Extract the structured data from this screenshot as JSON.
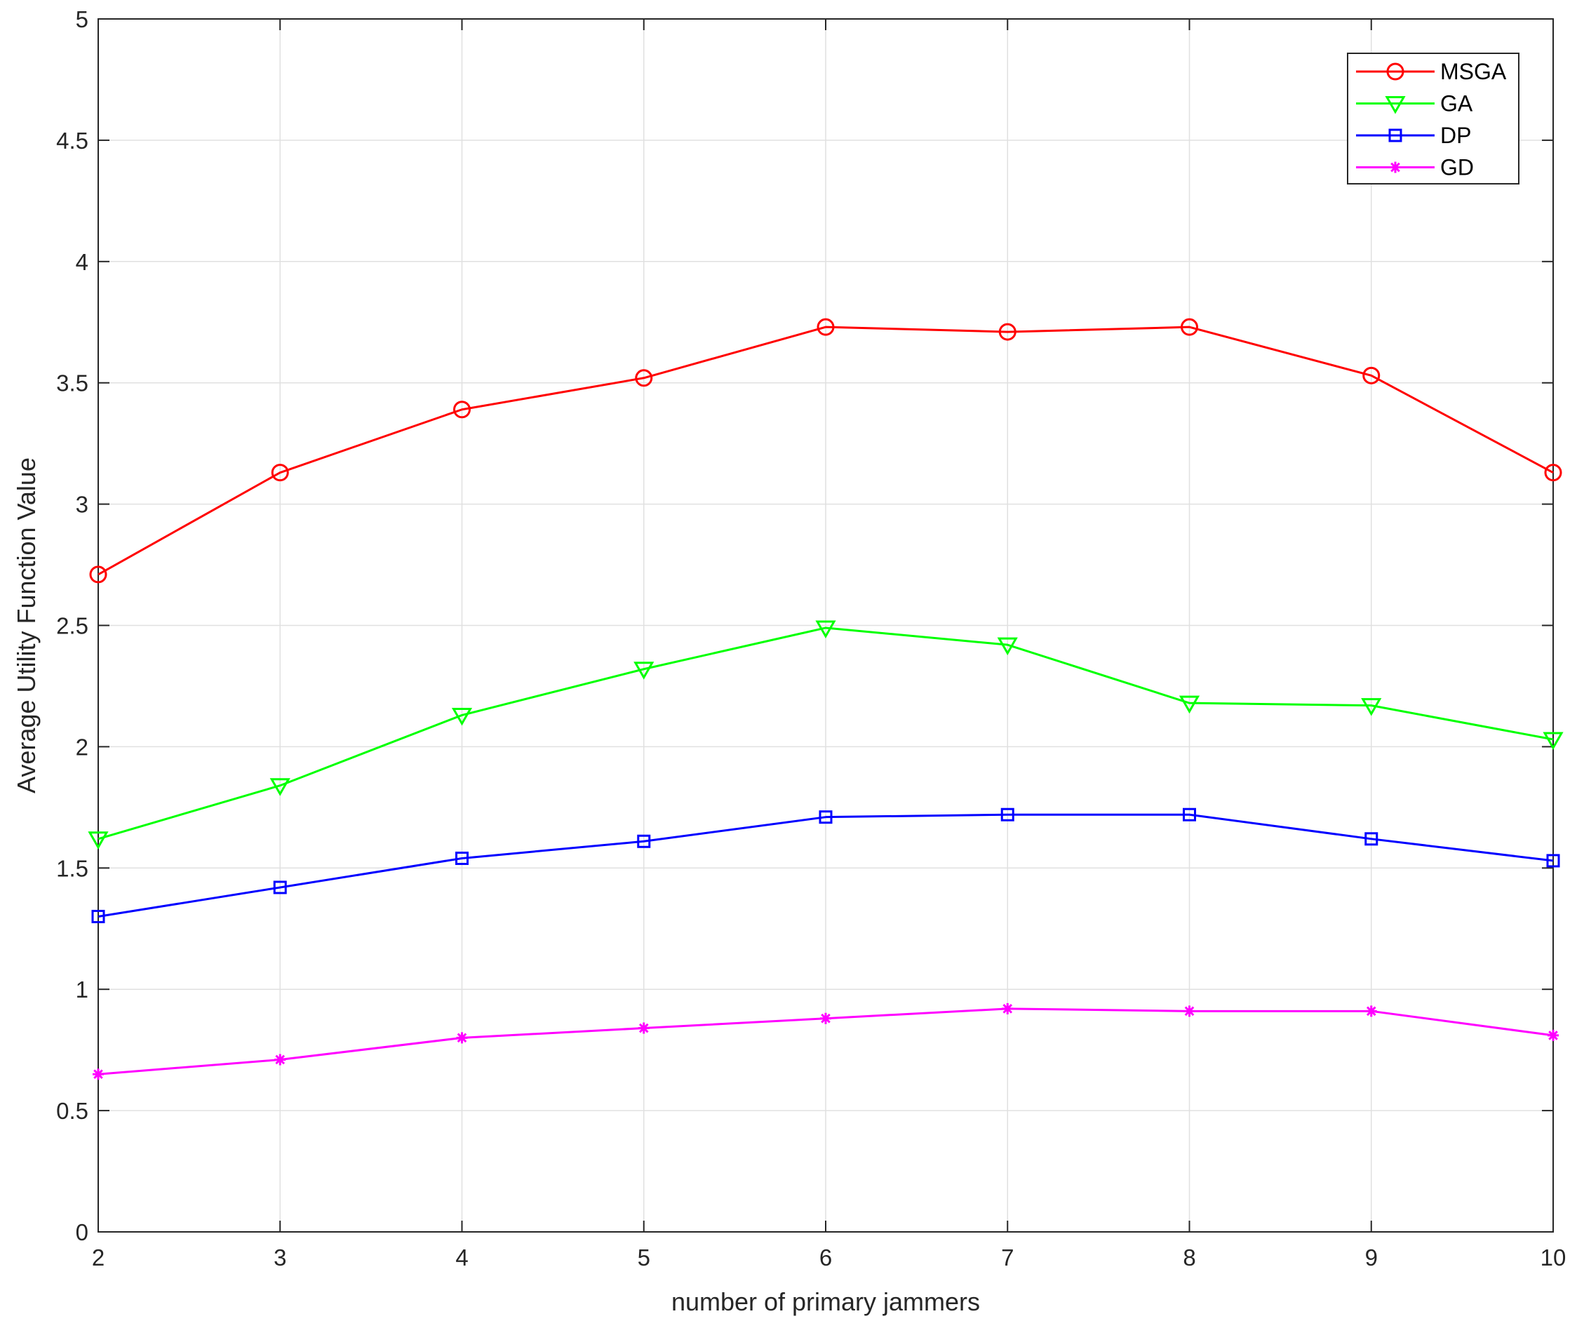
{
  "chart_data": {
    "type": "line",
    "xlabel": "number of primary jammers",
    "ylabel": "Average Utility Function Value",
    "x": [
      2,
      3,
      4,
      5,
      6,
      7,
      8,
      9,
      10
    ],
    "xlim": [
      2,
      10
    ],
    "ylim": [
      0,
      5
    ],
    "xticks": [
      2,
      3,
      4,
      5,
      6,
      7,
      8,
      9,
      10
    ],
    "yticks": [
      0,
      0.5,
      1,
      1.5,
      2,
      2.5,
      3,
      3.5,
      4,
      4.5,
      5
    ],
    "xtick_labels": [
      "2",
      "3",
      "4",
      "5",
      "6",
      "7",
      "8",
      "9",
      "10"
    ],
    "ytick_labels": [
      "0",
      "0.5",
      "1",
      "1.5",
      "2",
      "2.5",
      "3",
      "3.5",
      "4",
      "4.5",
      "5"
    ],
    "grid": true,
    "legend_position": "top-right",
    "series": [
      {
        "name": "MSGA",
        "color": "#ff0000",
        "marker": "circle",
        "values": [
          2.71,
          3.13,
          3.39,
          3.52,
          3.73,
          3.71,
          3.73,
          3.53,
          3.13
        ]
      },
      {
        "name": "GA",
        "color": "#00ff00",
        "marker": "triangle-down",
        "values": [
          1.62,
          1.84,
          2.13,
          2.32,
          2.49,
          2.42,
          2.18,
          2.17,
          2.03
        ]
      },
      {
        "name": "DP",
        "color": "#0000ff",
        "marker": "square",
        "values": [
          1.3,
          1.42,
          1.54,
          1.61,
          1.71,
          1.72,
          1.72,
          1.62,
          1.53
        ]
      },
      {
        "name": "GD",
        "color": "#ff00ff",
        "marker": "asterisk",
        "values": [
          0.65,
          0.71,
          0.8,
          0.84,
          0.88,
          0.92,
          0.91,
          0.91,
          0.81
        ]
      }
    ]
  }
}
